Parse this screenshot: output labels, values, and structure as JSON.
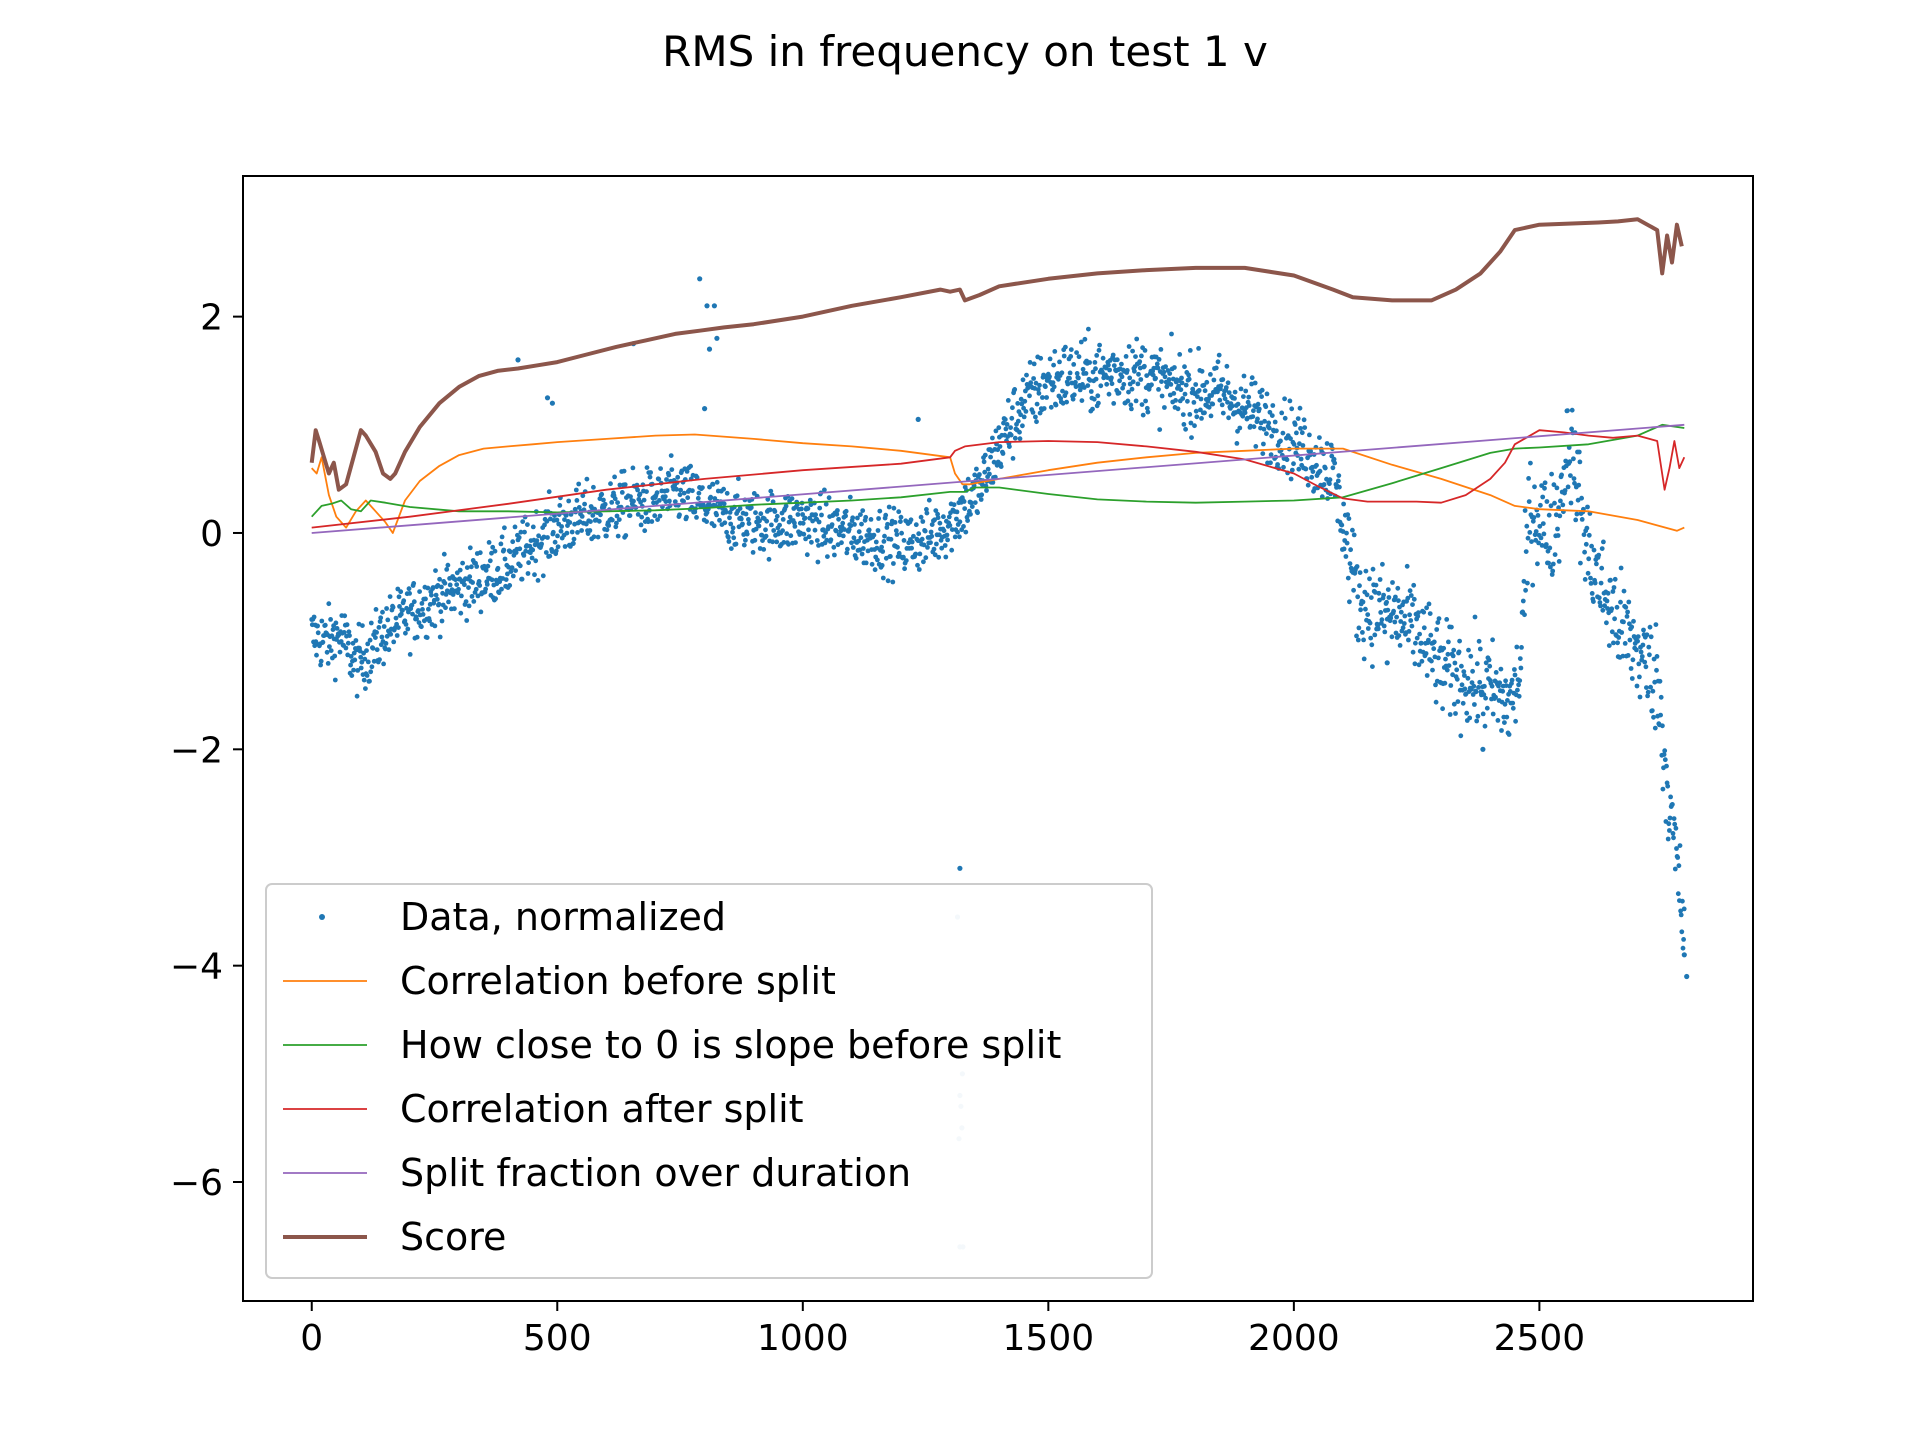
{
  "chart_data": {
    "type": "line",
    "title": "RMS in frequency on test 1 v",
    "xlabel": "",
    "ylabel": "",
    "xlim": [
      -140,
      2935
    ],
    "ylim": [
      -7.1,
      3.3
    ],
    "xticks": [
      0,
      500,
      1000,
      1500,
      2000,
      2500
    ],
    "xtick_labels": [
      "0",
      "500",
      "1000",
      "1500",
      "2000",
      "2500"
    ],
    "yticks": [
      -6,
      -4,
      -2,
      0,
      2
    ],
    "ytick_labels": [
      "−6",
      "−4",
      "−2",
      "0",
      "2"
    ],
    "grid": false,
    "legend_position": "lower-left",
    "scatter_series": {
      "name": "Data, normalized",
      "color": "#1f77b4",
      "trend_x": [
        0,
        30,
        60,
        90,
        120,
        150,
        200,
        250,
        300,
        350,
        400,
        450,
        500,
        550,
        600,
        650,
        700,
        750,
        800,
        850,
        900,
        950,
        1000,
        1050,
        1100,
        1150,
        1200,
        1250,
        1300,
        1330,
        1360,
        1400,
        1450,
        1500,
        1550,
        1600,
        1650,
        1700,
        1750,
        1800,
        1850,
        1900,
        1950,
        2000,
        2050,
        2080,
        2100,
        2130,
        2160,
        2200,
        2250,
        2300,
        2350,
        2400,
        2440,
        2460,
        2480,
        2500,
        2520,
        2540,
        2560,
        2600,
        2650,
        2700,
        2740,
        2760,
        2780,
        2795
      ],
      "trend_y": [
        -0.95,
        -1.0,
        -0.95,
        -1.2,
        -1.1,
        -0.9,
        -0.75,
        -0.6,
        -0.5,
        -0.4,
        -0.3,
        -0.1,
        0.05,
        0.15,
        0.2,
        0.28,
        0.3,
        0.38,
        0.25,
        0.15,
        0.1,
        0.1,
        0.12,
        0.05,
        0.0,
        -0.05,
        -0.1,
        -0.05,
        0.1,
        0.25,
        0.4,
        0.8,
        1.2,
        1.4,
        1.45,
        1.45,
        1.5,
        1.45,
        1.35,
        1.3,
        1.3,
        1.15,
        1.0,
        0.85,
        0.65,
        0.55,
        0.1,
        -0.6,
        -0.7,
        -0.75,
        -0.9,
        -1.25,
        -1.35,
        -1.45,
        -1.6,
        -1.3,
        0.2,
        0.15,
        0.0,
        0.2,
        0.9,
        -0.2,
        -0.75,
        -1.1,
        -1.35,
        -2.3,
        -3.1,
        -3.7
      ],
      "spread": 0.15,
      "outliers": [
        [
          790,
          2.35
        ],
        [
          805,
          2.1
        ],
        [
          820,
          2.1
        ],
        [
          810,
          1.7
        ],
        [
          825,
          1.8
        ],
        [
          655,
          1.75
        ],
        [
          420,
          1.6
        ],
        [
          480,
          1.25
        ],
        [
          490,
          1.2
        ],
        [
          800,
          1.15
        ],
        [
          1235,
          1.05
        ],
        [
          1320,
          -3.1
        ],
        [
          1315,
          -3.55
        ],
        [
          1325,
          -5.0
        ],
        [
          1320,
          -5.2
        ],
        [
          1322,
          -5.3
        ],
        [
          1324,
          -5.5
        ],
        [
          1318,
          -5.6
        ],
        [
          1326,
          -6.6
        ],
        [
          1320,
          -6.6
        ],
        [
          2800,
          -4.1
        ],
        [
          2795,
          -3.9
        ],
        [
          2190,
          -1.2
        ],
        [
          2385,
          -2.0
        ]
      ]
    },
    "series": [
      {
        "name": "Correlation before split",
        "color": "#ff7f0e",
        "x": [
          0,
          10,
          20,
          35,
          50,
          70,
          90,
          110,
          130,
          150,
          165,
          190,
          220,
          260,
          300,
          350,
          400,
          450,
          500,
          600,
          700,
          780,
          900,
          1000,
          1100,
          1200,
          1300,
          1310,
          1325,
          1340,
          1400,
          1500,
          1600,
          1700,
          1800,
          1900,
          2000,
          2100,
          2200,
          2300,
          2400,
          2450,
          2500,
          2600,
          2700,
          2780,
          2795
        ],
        "y": [
          0.6,
          0.55,
          0.7,
          0.35,
          0.15,
          0.05,
          0.2,
          0.3,
          0.2,
          0.1,
          0.0,
          0.3,
          0.48,
          0.62,
          0.72,
          0.78,
          0.8,
          0.82,
          0.84,
          0.87,
          0.9,
          0.91,
          0.87,
          0.83,
          0.8,
          0.76,
          0.7,
          0.55,
          0.45,
          0.45,
          0.5,
          0.58,
          0.65,
          0.7,
          0.74,
          0.76,
          0.78,
          0.78,
          0.63,
          0.5,
          0.35,
          0.25,
          0.22,
          0.2,
          0.12,
          0.02,
          0.05
        ]
      },
      {
        "name": "How close to 0 is slope before split",
        "color": "#2ca02c",
        "x": [
          0,
          20,
          40,
          60,
          80,
          100,
          120,
          150,
          200,
          300,
          400,
          500,
          600,
          700,
          800,
          900,
          1000,
          1100,
          1200,
          1300,
          1330,
          1350,
          1400,
          1500,
          1600,
          1700,
          1800,
          1900,
          2000,
          2100,
          2200,
          2300,
          2400,
          2450,
          2500,
          2600,
          2700,
          2750,
          2795
        ],
        "y": [
          0.15,
          0.25,
          0.27,
          0.3,
          0.22,
          0.2,
          0.3,
          0.28,
          0.24,
          0.2,
          0.2,
          0.19,
          0.2,
          0.21,
          0.23,
          0.26,
          0.28,
          0.3,
          0.33,
          0.38,
          0.38,
          0.42,
          0.42,
          0.36,
          0.31,
          0.29,
          0.28,
          0.29,
          0.3,
          0.33,
          0.46,
          0.6,
          0.74,
          0.78,
          0.79,
          0.82,
          0.9,
          1.0,
          0.97
        ]
      },
      {
        "name": "Correlation after split",
        "color": "#d62728",
        "x": [
          0,
          200,
          400,
          600,
          800,
          1000,
          1200,
          1300,
          1310,
          1330,
          1400,
          1500,
          1600,
          1700,
          1800,
          1900,
          2000,
          2050,
          2100,
          2150,
          2200,
          2250,
          2300,
          2350,
          2400,
          2430,
          2450,
          2500,
          2550,
          2600,
          2650,
          2700,
          2740,
          2755,
          2765,
          2775,
          2785,
          2795
        ],
        "y": [
          0.05,
          0.15,
          0.27,
          0.4,
          0.5,
          0.58,
          0.64,
          0.7,
          0.76,
          0.8,
          0.84,
          0.85,
          0.84,
          0.8,
          0.75,
          0.68,
          0.55,
          0.43,
          0.32,
          0.29,
          0.29,
          0.29,
          0.28,
          0.35,
          0.5,
          0.65,
          0.82,
          0.95,
          0.93,
          0.9,
          0.88,
          0.9,
          0.85,
          0.4,
          0.6,
          0.85,
          0.6,
          0.7
        ]
      },
      {
        "name": "Split fraction over duration",
        "color": "#9467bd",
        "x": [
          0,
          2795
        ],
        "y": [
          0.0,
          1.0
        ]
      },
      {
        "name": "Score",
        "color": "#8c564b",
        "x": [
          0,
          8,
          15,
          25,
          35,
          45,
          55,
          70,
          85,
          100,
          110,
          130,
          145,
          160,
          170,
          190,
          220,
          260,
          300,
          340,
          380,
          420,
          460,
          500,
          560,
          620,
          680,
          740,
          790,
          840,
          900,
          1000,
          1100,
          1200,
          1280,
          1300,
          1320,
          1330,
          1360,
          1400,
          1500,
          1600,
          1700,
          1800,
          1900,
          2000,
          2080,
          2120,
          2200,
          2280,
          2330,
          2380,
          2420,
          2450,
          2500,
          2560,
          2620,
          2660,
          2700,
          2740,
          2750,
          2760,
          2770,
          2780,
          2790
        ],
        "y": [
          0.65,
          0.95,
          0.85,
          0.7,
          0.55,
          0.65,
          0.4,
          0.45,
          0.7,
          0.95,
          0.9,
          0.75,
          0.55,
          0.5,
          0.55,
          0.75,
          0.98,
          1.2,
          1.35,
          1.45,
          1.5,
          1.52,
          1.55,
          1.58,
          1.65,
          1.72,
          1.78,
          1.84,
          1.87,
          1.9,
          1.93,
          2.0,
          2.1,
          2.18,
          2.25,
          2.23,
          2.25,
          2.15,
          2.2,
          2.28,
          2.35,
          2.4,
          2.43,
          2.45,
          2.45,
          2.38,
          2.25,
          2.18,
          2.15,
          2.15,
          2.25,
          2.4,
          2.6,
          2.8,
          2.85,
          2.86,
          2.87,
          2.88,
          2.9,
          2.8,
          2.4,
          2.75,
          2.5,
          2.85,
          2.65
        ]
      }
    ],
    "legend": [
      {
        "label": "Data, normalized",
        "marker": "dot",
        "color": "#1f77b4"
      },
      {
        "label": "Correlation before split",
        "marker": "line",
        "color": "#ff7f0e"
      },
      {
        "label": "How close to 0 is slope before split",
        "marker": "line",
        "color": "#2ca02c"
      },
      {
        "label": "Correlation after split",
        "marker": "line",
        "color": "#d62728"
      },
      {
        "label": "Split fraction over duration",
        "marker": "line",
        "color": "#9467bd"
      },
      {
        "label": "Score",
        "marker": "thickline",
        "color": "#8c564b"
      }
    ]
  }
}
